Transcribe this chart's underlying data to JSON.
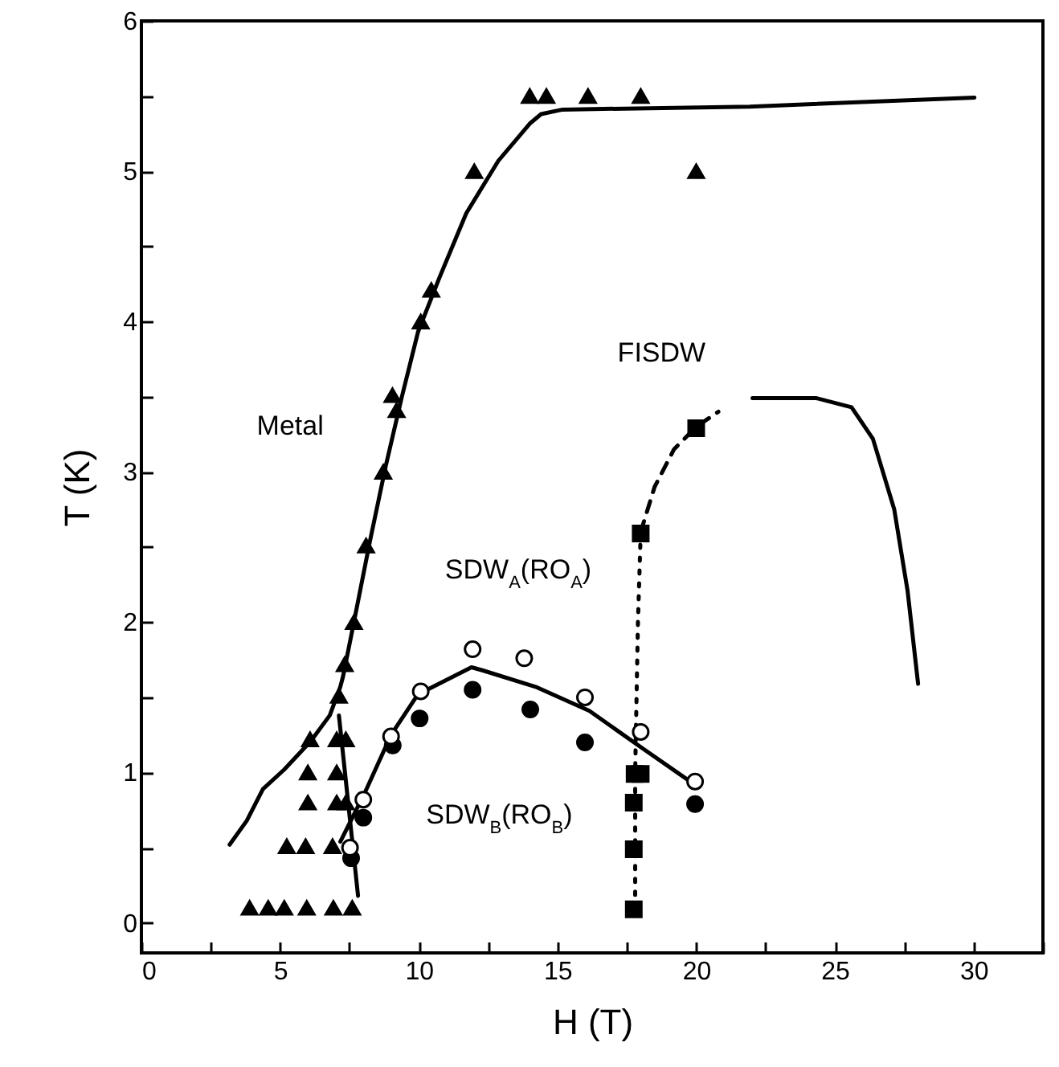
{
  "chart_data": {
    "type": "scatter",
    "xlabel": "H (T)",
    "ylabel": "T (K)",
    "xlim": [
      0,
      32.5
    ],
    "ylim": [
      -0.2,
      6
    ],
    "xticks": [
      0,
      {
        "value": 2.5,
        "label": null
      },
      5,
      {
        "value": 7.5,
        "label": null
      },
      10,
      {
        "value": 12.5,
        "label": null
      },
      15,
      {
        "value": 17.5,
        "label": null
      },
      20,
      {
        "value": 22.5,
        "label": null
      },
      25,
      {
        "value": 27.5,
        "label": null
      },
      30,
      {
        "value": 32.5,
        "label": null
      }
    ],
    "yticks": [
      0,
      {
        "value": 0.5,
        "label": null
      },
      1,
      {
        "value": 1.5,
        "label": null
      },
      2,
      {
        "value": 2.5,
        "label": null
      },
      3,
      {
        "value": 3.5,
        "label": null
      },
      4,
      {
        "value": 4.5,
        "label": null
      },
      5,
      {
        "value": 5.5,
        "label": null
      },
      6
    ],
    "grid": false,
    "series": [
      {
        "type": "line",
        "color": "#000000",
        "line_style": "solid",
        "x": [
          3.18,
          3.8,
          4.38,
          5.15,
          6.11,
          6.79,
          7.17,
          7.27,
          7.66,
          8.24,
          8.81,
          9.39,
          9.97,
          10.74,
          11.71,
          12.87,
          14.02,
          14.41,
          15.18,
          21.93,
          30.03
        ],
        "values": [
          0.52,
          0.68,
          0.89,
          1.02,
          1.21,
          1.38,
          1.57,
          1.64,
          2.0,
          2.54,
          3.04,
          3.5,
          3.93,
          4.29,
          4.72,
          5.07,
          5.32,
          5.38,
          5.41,
          5.43,
          5.49
        ]
      },
      {
        "type": "line",
        "color": "#000000",
        "line_style": "solid",
        "x": [
          7.12,
          7.81
        ],
        "values": [
          1.38,
          0.18
        ]
      },
      {
        "type": "line",
        "color": "#000000",
        "line_style": "solid",
        "x": [
          7.17,
          8.04,
          9.0,
          9.97,
          11.9,
          12.29,
          14.21,
          16.15,
          18.07,
          19.71
        ],
        "values": [
          0.54,
          0.86,
          1.25,
          1.52,
          1.7,
          1.68,
          1.57,
          1.41,
          1.16,
          0.95
        ]
      },
      {
        "type": "line",
        "color": "#000000",
        "line_style": "dotted",
        "x": [
          17.8,
          17.8,
          17.9,
          18.0
        ],
        "values": [
          0.1,
          1.0,
          2.0,
          2.6
        ]
      },
      {
        "type": "line",
        "color": "#000000",
        "line_style": "dashed",
        "x": [
          18.0,
          18.5,
          19.2,
          20.0,
          20.8
        ],
        "values": [
          2.6,
          2.9,
          3.15,
          3.3,
          3.4
        ]
      },
      {
        "type": "line",
        "color": "#000000",
        "line_style": "solid",
        "x": [
          22.03,
          24.34,
          25.6,
          26.37,
          27.14,
          27.62,
          28.0
        ],
        "values": [
          3.49,
          3.49,
          3.43,
          3.22,
          2.75,
          2.21,
          1.59
        ]
      },
      {
        "color": "#000000",
        "marker": "triangle",
        "x": [
          14.0,
          14.6,
          16.1,
          18.0,
          20.0,
          12.0,
          10.45,
          10.07,
          9.05,
          9.2,
          8.72,
          8.1,
          7.66,
          7.33,
          7.12,
          6.08,
          7.04,
          7.37,
          6.0,
          7.04,
          6.0,
          7.04,
          7.37,
          5.24,
          5.92,
          6.89,
          3.9,
          4.57,
          5.15,
          5.96,
          6.92,
          7.6
        ],
        "values": [
          5.5,
          5.5,
          5.5,
          5.5,
          5.0,
          5.0,
          4.21,
          4.0,
          3.51,
          3.41,
          3.0,
          2.51,
          2.0,
          1.72,
          1.51,
          1.22,
          1.22,
          1.22,
          1.0,
          1.0,
          0.8,
          0.8,
          0.8,
          0.51,
          0.51,
          0.51,
          0.1,
          0.1,
          0.1,
          0.1,
          0.1,
          0.1
        ]
      },
      {
        "color": "#000000",
        "marker": "circle",
        "x": [
          7.56,
          8.0,
          9.06,
          10.03,
          11.94,
          14.02,
          15.99,
          19.96
        ],
        "values": [
          0.43,
          0.7,
          1.18,
          1.36,
          1.55,
          1.42,
          1.2,
          0.79
        ]
      },
      {
        "color": "#ffffff",
        "marker": "circle",
        "x": [
          7.52,
          8.0,
          9.0,
          10.07,
          11.94,
          13.8,
          15.99,
          18.0,
          19.96
        ],
        "values": [
          0.5,
          0.82,
          1.24,
          1.54,
          1.82,
          1.76,
          1.5,
          1.27,
          0.94
        ]
      },
      {
        "color": "#000000",
        "marker": "square",
        "x": [
          17.78,
          18.0,
          17.75,
          17.75,
          17.75,
          18.0,
          20.0
        ],
        "values": [
          0.99,
          0.99,
          0.8,
          0.49,
          0.09,
          2.59,
          3.29
        ]
      }
    ],
    "annotations": [
      "Metal",
      "FISDW",
      "SDW$_{A}$(RO$_{A}$)",
      "SDW$_{B}$(RO$_{B}$)"
    ]
  }
}
